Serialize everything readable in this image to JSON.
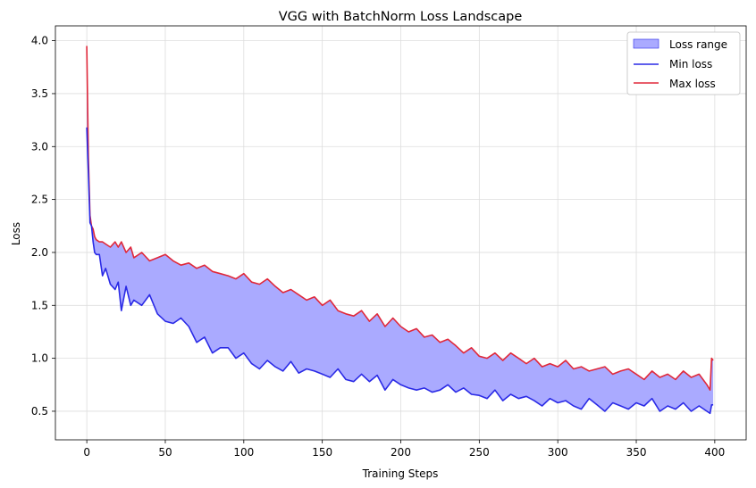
{
  "chart_data": {
    "type": "area",
    "title": "VGG with BatchNorm Loss Landscape",
    "xlabel": "Training Steps",
    "ylabel": "Loss",
    "xlim": [
      -20,
      420
    ],
    "ylim": [
      0.23,
      4.14
    ],
    "xticks": [
      0,
      50,
      100,
      150,
      200,
      250,
      300,
      350,
      400
    ],
    "yticks": [
      0.5,
      1.0,
      1.5,
      2.0,
      2.5,
      3.0,
      3.5,
      4.0
    ],
    "xtick_labels": [
      "0",
      "50",
      "100",
      "150",
      "200",
      "250",
      "300",
      "350",
      "400"
    ],
    "ytick_labels": [
      "0.5",
      "1.0",
      "1.5",
      "2.0",
      "2.5",
      "3.0",
      "3.5",
      "4.0"
    ],
    "grid": true,
    "legend_position": "top-right",
    "legend": [
      "Loss range",
      "Min loss",
      "Max loss"
    ],
    "colors": {
      "fill": "#aaaaff",
      "min_line": "#2a2ae6",
      "max_line": "#e0283a"
    },
    "x": [
      0,
      1,
      2,
      3,
      4,
      5,
      6,
      8,
      10,
      12,
      15,
      18,
      20,
      22,
      25,
      28,
      30,
      35,
      40,
      45,
      50,
      55,
      60,
      65,
      70,
      75,
      80,
      85,
      90,
      95,
      100,
      105,
      110,
      115,
      120,
      125,
      130,
      135,
      140,
      145,
      150,
      155,
      160,
      165,
      170,
      175,
      180,
      185,
      190,
      195,
      200,
      205,
      210,
      215,
      220,
      225,
      230,
      235,
      240,
      245,
      250,
      255,
      260,
      265,
      270,
      275,
      280,
      285,
      290,
      295,
      300,
      305,
      310,
      315,
      320,
      325,
      330,
      335,
      340,
      345,
      350,
      355,
      360,
      365,
      370,
      375,
      380,
      385,
      390,
      395,
      397,
      398,
      399
    ],
    "series": [
      {
        "name": "Min loss",
        "values": [
          3.18,
          2.75,
          2.28,
          2.25,
          2.1,
          2.0,
          1.98,
          1.98,
          1.78,
          1.85,
          1.7,
          1.65,
          1.72,
          1.45,
          1.68,
          1.5,
          1.55,
          1.5,
          1.6,
          1.42,
          1.35,
          1.33,
          1.38,
          1.3,
          1.15,
          1.2,
          1.05,
          1.1,
          1.1,
          1.0,
          1.05,
          0.95,
          0.9,
          0.98,
          0.92,
          0.88,
          0.97,
          0.86,
          0.9,
          0.88,
          0.85,
          0.82,
          0.9,
          0.8,
          0.78,
          0.85,
          0.78,
          0.84,
          0.7,
          0.8,
          0.75,
          0.72,
          0.7,
          0.72,
          0.68,
          0.7,
          0.75,
          0.68,
          0.72,
          0.66,
          0.65,
          0.62,
          0.7,
          0.6,
          0.66,
          0.62,
          0.64,
          0.6,
          0.55,
          0.62,
          0.58,
          0.6,
          0.55,
          0.52,
          0.62,
          0.56,
          0.5,
          0.58,
          0.55,
          0.52,
          0.58,
          0.55,
          0.62,
          0.5,
          0.55,
          0.52,
          0.58,
          0.5,
          0.55,
          0.5,
          0.48,
          0.56,
          0.56
        ]
      },
      {
        "name": "Max loss",
        "values": [
          3.95,
          2.9,
          2.35,
          2.25,
          2.22,
          2.15,
          2.12,
          2.1,
          2.1,
          2.08,
          2.05,
          2.1,
          2.05,
          2.1,
          2.0,
          2.05,
          1.95,
          2.0,
          1.92,
          1.95,
          1.98,
          1.92,
          1.88,
          1.9,
          1.85,
          1.88,
          1.82,
          1.8,
          1.78,
          1.75,
          1.8,
          1.72,
          1.7,
          1.75,
          1.68,
          1.62,
          1.65,
          1.6,
          1.55,
          1.58,
          1.5,
          1.55,
          1.45,
          1.42,
          1.4,
          1.45,
          1.35,
          1.42,
          1.3,
          1.38,
          1.3,
          1.25,
          1.28,
          1.2,
          1.22,
          1.15,
          1.18,
          1.12,
          1.05,
          1.1,
          1.02,
          1.0,
          1.05,
          0.98,
          1.05,
          1.0,
          0.95,
          1.0,
          0.92,
          0.95,
          0.92,
          0.98,
          0.9,
          0.92,
          0.88,
          0.9,
          0.92,
          0.85,
          0.88,
          0.9,
          0.85,
          0.8,
          0.88,
          0.82,
          0.85,
          0.8,
          0.88,
          0.82,
          0.85,
          0.75,
          0.7,
          1.0,
          0.98
        ]
      }
    ]
  }
}
